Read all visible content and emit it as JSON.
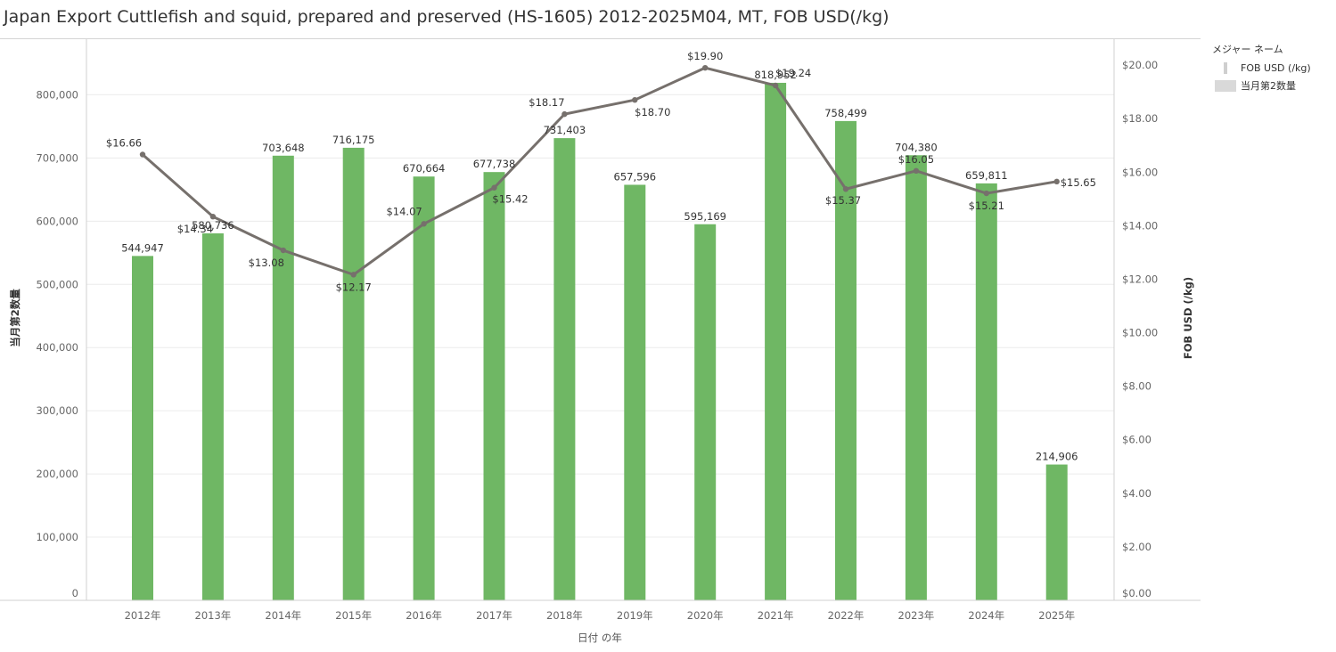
{
  "title": "Japan Export Cuttlefish and squid, prepared and preserved (HS-1605) 2012-2025M04, MT, FOB USD(/kg)",
  "legend": {
    "title": "メジャー ネーム",
    "items": [
      {
        "label": "FOB USD (/kg)",
        "kind": "line"
      },
      {
        "label": "当月第2数量",
        "kind": "bar"
      }
    ]
  },
  "colors": {
    "bar": "#6fb764",
    "line": "#76706c",
    "grid": "#ececec",
    "axis": "#d0d0d0",
    "tick_text": "#666666",
    "label_text": "#333333"
  },
  "chart_data": {
    "type": "bar",
    "categories": [
      "2012年",
      "2013年",
      "2014年",
      "2015年",
      "2016年",
      "2017年",
      "2018年",
      "2019年",
      "2020年",
      "2021年",
      "2022年",
      "2023年",
      "2024年",
      "2025年"
    ],
    "series": [
      {
        "name": "当月第2数量",
        "type": "bar",
        "axis": "left",
        "values": [
          544947,
          580736,
          703648,
          716175,
          670664,
          677738,
          731403,
          657596,
          595169,
          818952,
          758499,
          704380,
          659811,
          214906
        ],
        "labels": [
          "544,947",
          "580,736",
          "703,648",
          "716,175",
          "670,664",
          "677,738",
          "731,403",
          "657,596",
          "595,169",
          "818,952",
          "758,499",
          "704,380",
          "659,811",
          "214,906"
        ]
      },
      {
        "name": "FOB USD (/kg)",
        "type": "line",
        "axis": "right",
        "values": [
          16.66,
          14.34,
          13.08,
          12.17,
          14.07,
          15.42,
          18.17,
          18.7,
          19.9,
          19.24,
          15.37,
          16.05,
          15.21,
          15.65
        ],
        "labels": [
          "$16.66",
          "$14.34",
          "$13.08",
          "$12.17",
          "$14.07",
          "$15.42",
          "$18.17",
          "$18.70",
          "$19.90",
          "$19.24",
          "$15.37",
          "$16.05",
          "$15.21",
          "$15.65"
        ]
      }
    ],
    "xlabel": "日付 の年",
    "ylabel": "当月第2数量",
    "y2label": "FOB USD (/kg)",
    "ylim": [
      0,
      888000
    ],
    "y2lim": [
      0,
      20.97
    ],
    "yticks": [
      "0",
      "100,000",
      "200,000",
      "300,000",
      "400,000",
      "500,000",
      "600,000",
      "700,000",
      "800,000"
    ],
    "y2ticks": [
      "$0.00",
      "$2.00",
      "$4.00",
      "$6.00",
      "$8.00",
      "$10.00",
      "$12.00",
      "$14.00",
      "$16.00",
      "$18.00",
      "$20.00"
    ],
    "grid": true,
    "legend_position": "right"
  }
}
